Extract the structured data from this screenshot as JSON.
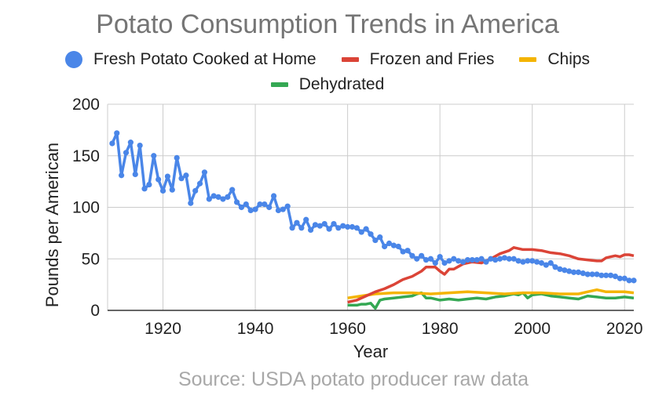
{
  "chart_data": {
    "type": "line",
    "title": "Potato Consumption Trends in America",
    "xlabel": "Year",
    "ylabel": "Pounds per American",
    "xlim": [
      1908,
      2022
    ],
    "ylim": [
      0,
      200
    ],
    "x_ticks": [
      1920,
      1940,
      1960,
      1980,
      2000,
      2020
    ],
    "y_ticks": [
      0,
      50,
      100,
      150,
      200
    ],
    "grid": true,
    "legend_position": "top",
    "source": "Source: USDA potato producer raw data",
    "series": [
      {
        "name": "Fresh Potato Cooked at Home",
        "color": "#4a86e8",
        "marker": "circle",
        "points": [
          [
            1909,
            162
          ],
          [
            1910,
            172
          ],
          [
            1911,
            131
          ],
          [
            1912,
            153
          ],
          [
            1913,
            163
          ],
          [
            1914,
            132
          ],
          [
            1915,
            160
          ],
          [
            1916,
            118
          ],
          [
            1917,
            122
          ],
          [
            1918,
            150
          ],
          [
            1919,
            127
          ],
          [
            1920,
            116
          ],
          [
            1921,
            130
          ],
          [
            1922,
            117
          ],
          [
            1923,
            148
          ],
          [
            1924,
            128
          ],
          [
            1925,
            131
          ],
          [
            1926,
            104
          ],
          [
            1927,
            116
          ],
          [
            1928,
            123
          ],
          [
            1929,
            134
          ],
          [
            1930,
            108
          ],
          [
            1931,
            111
          ],
          [
            1932,
            110
          ],
          [
            1933,
            108
          ],
          [
            1934,
            110
          ],
          [
            1935,
            117
          ],
          [
            1936,
            105
          ],
          [
            1937,
            100
          ],
          [
            1938,
            103
          ],
          [
            1939,
            97
          ],
          [
            1940,
            98
          ],
          [
            1941,
            103
          ],
          [
            1942,
            103
          ],
          [
            1943,
            100
          ],
          [
            1944,
            111
          ],
          [
            1945,
            97
          ],
          [
            1946,
            98
          ],
          [
            1947,
            101
          ],
          [
            1948,
            80
          ],
          [
            1949,
            85
          ],
          [
            1950,
            80
          ],
          [
            1951,
            88
          ],
          [
            1952,
            78
          ],
          [
            1953,
            83
          ],
          [
            1954,
            82
          ],
          [
            1955,
            84
          ],
          [
            1956,
            79
          ],
          [
            1957,
            84
          ],
          [
            1958,
            80
          ],
          [
            1959,
            82
          ],
          [
            1960,
            81
          ],
          [
            1961,
            81
          ],
          [
            1962,
            80
          ],
          [
            1963,
            76
          ],
          [
            1964,
            79
          ],
          [
            1965,
            74
          ],
          [
            1966,
            68
          ],
          [
            1967,
            71
          ],
          [
            1968,
            62
          ],
          [
            1969,
            65
          ],
          [
            1970,
            63
          ],
          [
            1971,
            62
          ],
          [
            1972,
            57
          ],
          [
            1973,
            58
          ],
          [
            1974,
            53
          ],
          [
            1975,
            50
          ],
          [
            1976,
            53
          ],
          [
            1977,
            49
          ],
          [
            1978,
            50
          ],
          [
            1979,
            46
          ],
          [
            1980,
            52
          ],
          [
            1981,
            46
          ],
          [
            1982,
            48
          ],
          [
            1983,
            50
          ],
          [
            1984,
            48
          ],
          [
            1985,
            47
          ],
          [
            1986,
            49
          ],
          [
            1987,
            49
          ],
          [
            1988,
            49
          ],
          [
            1989,
            50
          ],
          [
            1990,
            47
          ],
          [
            1991,
            50
          ],
          [
            1992,
            49
          ],
          [
            1993,
            50
          ],
          [
            1994,
            51
          ],
          [
            1995,
            50
          ],
          [
            1996,
            50
          ],
          [
            1997,
            48
          ],
          [
            1998,
            47
          ],
          [
            1999,
            48
          ],
          [
            2000,
            48
          ],
          [
            2001,
            47
          ],
          [
            2002,
            46
          ],
          [
            2003,
            44
          ],
          [
            2004,
            46
          ],
          [
            2005,
            42
          ],
          [
            2006,
            40
          ],
          [
            2007,
            39
          ],
          [
            2008,
            38
          ],
          [
            2009,
            37
          ],
          [
            2010,
            37
          ],
          [
            2011,
            36
          ],
          [
            2012,
            35
          ],
          [
            2013,
            35
          ],
          [
            2014,
            35
          ],
          [
            2015,
            34
          ],
          [
            2016,
            34
          ],
          [
            2017,
            34
          ],
          [
            2018,
            33
          ],
          [
            2019,
            31
          ],
          [
            2020,
            31
          ],
          [
            2021,
            29
          ],
          [
            2022,
            29
          ]
        ]
      },
      {
        "name": "Frozen and Fries",
        "color": "#db4437",
        "marker": "none",
        "points": [
          [
            1960,
            8
          ],
          [
            1962,
            10
          ],
          [
            1964,
            14
          ],
          [
            1966,
            18
          ],
          [
            1968,
            21
          ],
          [
            1970,
            25
          ],
          [
            1972,
            30
          ],
          [
            1974,
            33
          ],
          [
            1976,
            38
          ],
          [
            1977,
            42
          ],
          [
            1979,
            42
          ],
          [
            1980,
            38
          ],
          [
            1981,
            35
          ],
          [
            1982,
            40
          ],
          [
            1983,
            40
          ],
          [
            1985,
            45
          ],
          [
            1987,
            47
          ],
          [
            1989,
            46
          ],
          [
            1991,
            50
          ],
          [
            1993,
            55
          ],
          [
            1995,
            58
          ],
          [
            1996,
            61
          ],
          [
            1998,
            59
          ],
          [
            2000,
            59
          ],
          [
            2002,
            58
          ],
          [
            2004,
            56
          ],
          [
            2006,
            55
          ],
          [
            2008,
            53
          ],
          [
            2010,
            50
          ],
          [
            2012,
            49
          ],
          [
            2014,
            48
          ],
          [
            2015,
            48
          ],
          [
            2016,
            51
          ],
          [
            2017,
            52
          ],
          [
            2018,
            53
          ],
          [
            2019,
            52
          ],
          [
            2020,
            54
          ],
          [
            2021,
            54
          ],
          [
            2022,
            53
          ]
        ]
      },
      {
        "name": "Chips",
        "color": "#f4b400",
        "marker": "none",
        "points": [
          [
            1960,
            12
          ],
          [
            1963,
            14
          ],
          [
            1966,
            16
          ],
          [
            1970,
            17
          ],
          [
            1974,
            17
          ],
          [
            1978,
            16
          ],
          [
            1982,
            17
          ],
          [
            1986,
            18
          ],
          [
            1990,
            17
          ],
          [
            1994,
            16
          ],
          [
            1998,
            17
          ],
          [
            2002,
            17
          ],
          [
            2006,
            16
          ],
          [
            2008,
            16
          ],
          [
            2010,
            16
          ],
          [
            2012,
            18
          ],
          [
            2014,
            20
          ],
          [
            2016,
            18
          ],
          [
            2018,
            18
          ],
          [
            2020,
            18
          ],
          [
            2022,
            17
          ]
        ]
      },
      {
        "name": "Dehydrated",
        "color": "#34a853",
        "marker": "none",
        "points": [
          [
            1960,
            5
          ],
          [
            1961,
            5
          ],
          [
            1962,
            5
          ],
          [
            1963,
            6
          ],
          [
            1964,
            6
          ],
          [
            1965,
            7
          ],
          [
            1966,
            2
          ],
          [
            1967,
            10
          ],
          [
            1968,
            11
          ],
          [
            1970,
            12
          ],
          [
            1972,
            13
          ],
          [
            1974,
            14
          ],
          [
            1975,
            16
          ],
          [
            1976,
            17
          ],
          [
            1977,
            12
          ],
          [
            1978,
            12
          ],
          [
            1980,
            10
          ],
          [
            1982,
            11
          ],
          [
            1984,
            10
          ],
          [
            1986,
            11
          ],
          [
            1988,
            12
          ],
          [
            1990,
            11
          ],
          [
            1992,
            13
          ],
          [
            1994,
            14
          ],
          [
            1996,
            16
          ],
          [
            1997,
            15
          ],
          [
            1998,
            17
          ],
          [
            1999,
            12
          ],
          [
            2000,
            15
          ],
          [
            2002,
            16
          ],
          [
            2004,
            14
          ],
          [
            2006,
            13
          ],
          [
            2008,
            12
          ],
          [
            2010,
            11
          ],
          [
            2012,
            14
          ],
          [
            2014,
            13
          ],
          [
            2016,
            12
          ],
          [
            2018,
            12
          ],
          [
            2020,
            13
          ],
          [
            2022,
            12
          ]
        ]
      }
    ]
  }
}
